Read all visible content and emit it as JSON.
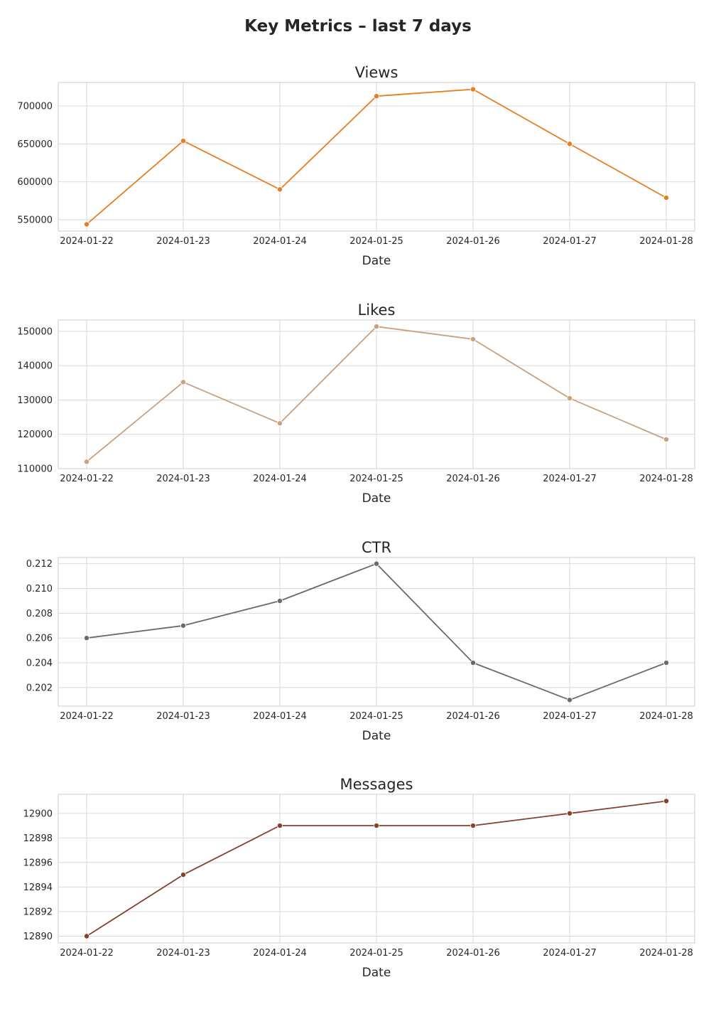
{
  "suptitle": "Key Metrics – last 7 days",
  "chart_data": [
    {
      "type": "line",
      "title": "Views",
      "xlabel": "Date",
      "ylabel": "",
      "x": [
        "2024-01-22",
        "2024-01-23",
        "2024-01-24",
        "2024-01-25",
        "2024-01-26",
        "2024-01-27",
        "2024-01-28"
      ],
      "series": [
        {
          "values": [
            544000,
            654000,
            590000,
            713000,
            722000,
            650000,
            579000
          ],
          "color": "#e67e22"
        }
      ],
      "yticks": [
        550000,
        600000,
        650000,
        700000
      ],
      "ytick_labels": [
        "550000",
        "600000",
        "650000",
        "700000"
      ],
      "ylim": [
        535000,
        731000
      ],
      "grid": true
    },
    {
      "type": "line",
      "title": "Likes",
      "xlabel": "Date",
      "ylabel": "",
      "x": [
        "2024-01-22",
        "2024-01-23",
        "2024-01-24",
        "2024-01-25",
        "2024-01-26",
        "2024-01-27",
        "2024-01-28"
      ],
      "series": [
        {
          "values": [
            112000,
            135200,
            123200,
            151400,
            147700,
            130500,
            118500
          ],
          "color": "#c8a07c"
        }
      ],
      "yticks": [
        110000,
        120000,
        130000,
        140000,
        150000
      ],
      "ytick_labels": [
        "110000",
        "120000",
        "130000",
        "140000",
        "150000"
      ],
      "ylim": [
        110000,
        153300
      ],
      "grid": true
    },
    {
      "type": "line",
      "title": "CTR",
      "xlabel": "Date",
      "ylabel": "",
      "x": [
        "2024-01-22",
        "2024-01-23",
        "2024-01-24",
        "2024-01-25",
        "2024-01-26",
        "2024-01-27",
        "2024-01-28"
      ],
      "series": [
        {
          "values": [
            0.206,
            0.207,
            0.209,
            0.212,
            0.204,
            0.201,
            0.204
          ],
          "color": "#6b6b64"
        }
      ],
      "yticks": [
        0.202,
        0.204,
        0.206,
        0.208,
        0.21,
        0.212
      ],
      "ytick_labels": [
        "0.202",
        "0.204",
        "0.206",
        "0.208",
        "0.210",
        "0.212"
      ],
      "ylim": [
        0.2005,
        0.2125
      ],
      "grid": true
    },
    {
      "type": "line",
      "title": "Messages",
      "xlabel": "Date",
      "ylabel": "",
      "x": [
        "2024-01-22",
        "2024-01-23",
        "2024-01-24",
        "2024-01-25",
        "2024-01-26",
        "2024-01-27",
        "2024-01-28"
      ],
      "series": [
        {
          "values": [
            12890,
            12895,
            12899,
            12899,
            12899,
            12900,
            12901
          ],
          "color": "#87402a"
        }
      ],
      "yticks": [
        12890,
        12892,
        12894,
        12896,
        12898,
        12900
      ],
      "ytick_labels": [
        "12890",
        "12892",
        "12894",
        "12896",
        "12898",
        "12900"
      ],
      "ylim": [
        12889.45,
        12901.55
      ],
      "grid": true
    }
  ]
}
